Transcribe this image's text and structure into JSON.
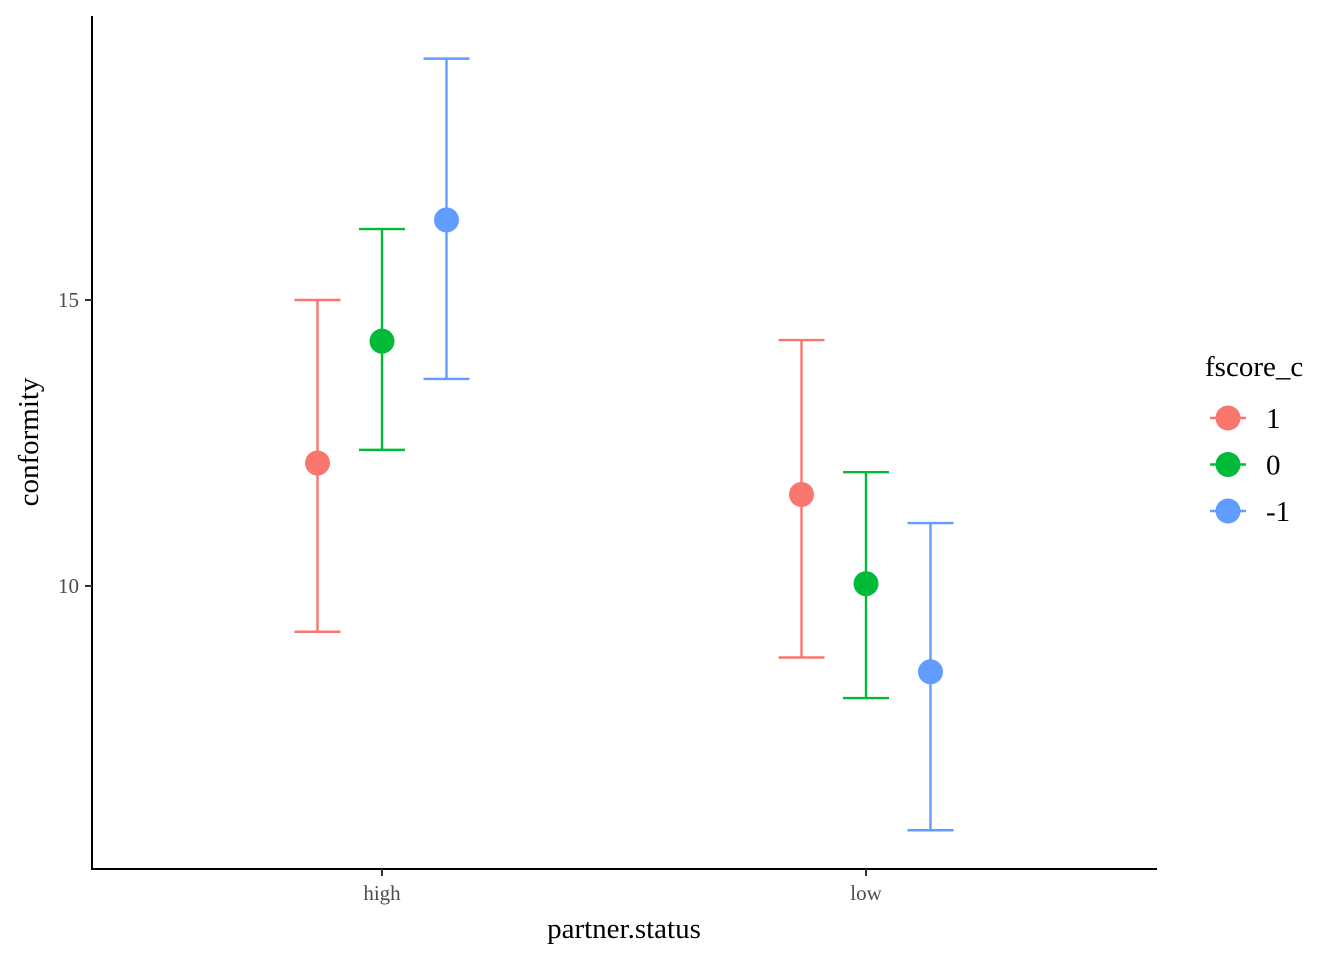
{
  "chart_data": {
    "type": "scatter",
    "subtype": "point-errorbar",
    "title": "",
    "xlabel": "partner.status",
    "ylabel": "conformity",
    "categories": [
      "high",
      "low"
    ],
    "ylim": [
      5.0,
      19.9
    ],
    "y_ticks": [
      10,
      15
    ],
    "y_tick_labels": [
      "10",
      "15"
    ],
    "grid": false,
    "legend": {
      "title": "fscore_c",
      "position": "right"
    },
    "series": [
      {
        "name": "1",
        "color": "#F8766D",
        "values": [
          12.15,
          11.6
        ],
        "lower": [
          9.2,
          8.75
        ],
        "upper": [
          15.0,
          14.3
        ]
      },
      {
        "name": "0",
        "color": "#00BA38",
        "values": [
          14.28,
          10.04
        ],
        "lower": [
          12.38,
          8.04
        ],
        "upper": [
          16.24,
          11.99
        ]
      },
      {
        "name": "-1",
        "color": "#619CFF",
        "values": [
          16.4,
          8.5
        ],
        "lower": [
          13.62,
          5.73
        ],
        "upper": [
          19.22,
          11.1
        ]
      }
    ]
  }
}
